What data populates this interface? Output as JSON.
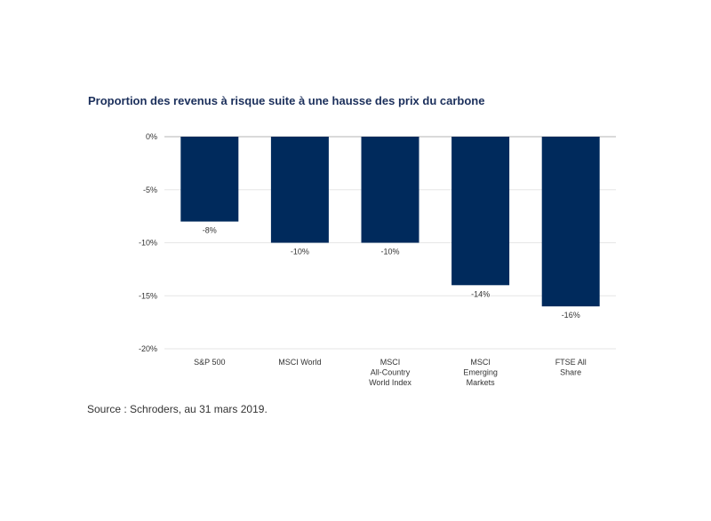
{
  "chart_data": {
    "type": "bar",
    "title": "Proportion des revenus à risque suite à une hausse des prix du carbone",
    "categories": [
      [
        "S&P 500"
      ],
      [
        "MSCI World"
      ],
      [
        "MSCI",
        "All-Country",
        "World Index"
      ],
      [
        "MSCI",
        "Emerging",
        "Markets"
      ],
      [
        "FTSE All",
        "Share"
      ]
    ],
    "values": [
      -8,
      -10,
      -10,
      -14,
      -16
    ],
    "value_labels": [
      "-8%",
      "-10%",
      "-10%",
      "-14%",
      "-16%"
    ],
    "yticks": [
      0,
      -5,
      -10,
      -15,
      -20
    ],
    "ytick_labels": [
      "0%",
      "-5%",
      "-10%",
      "-15%",
      "-20%"
    ],
    "ylim": [
      -20,
      0
    ],
    "bar_color": "#002a5c",
    "grid": true
  },
  "source": "Source : Schroders, au 31 mars 2019."
}
